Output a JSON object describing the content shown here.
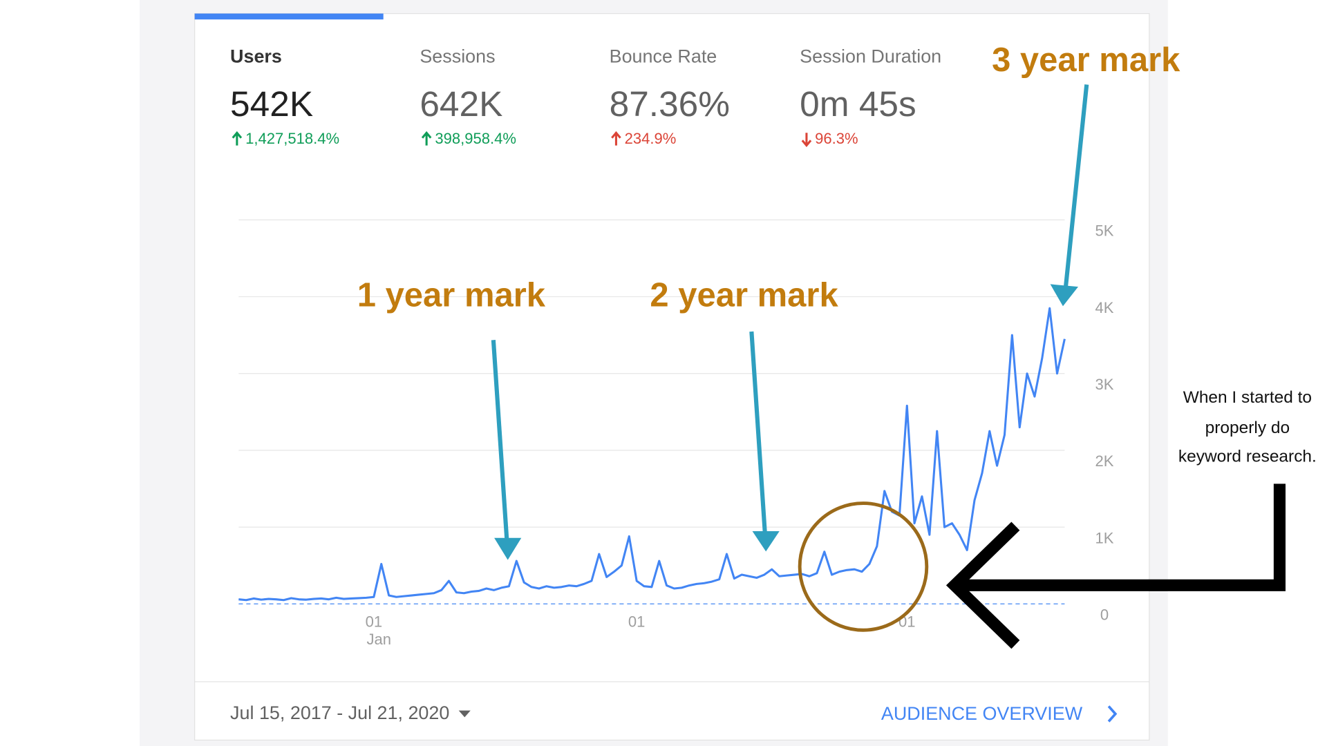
{
  "metrics": [
    {
      "label": "Users",
      "value": "542K",
      "change": "1,427,518.4%",
      "direction": "up",
      "color": "#0f9d58"
    },
    {
      "label": "Sessions",
      "value": "642K",
      "change": "398,958.4%",
      "direction": "up",
      "color": "#0f9d58"
    },
    {
      "label": "Bounce Rate",
      "value": "87.36%",
      "change": "234.9%",
      "direction": "up",
      "color": "#db4437"
    },
    {
      "label": "Session Duration",
      "value": "0m 45s",
      "change": "96.3%",
      "direction": "down",
      "color": "#db4437"
    }
  ],
  "chart_data": {
    "type": "line",
    "color": "#4285f4",
    "categories": [
      null,
      null,
      null,
      null,
      null,
      null,
      null,
      null,
      null,
      null,
      null,
      null,
      null,
      null,
      null,
      null,
      null,
      null,
      "01",
      null,
      null,
      null,
      null,
      null,
      null,
      null,
      null,
      null,
      null,
      null,
      null,
      null,
      null,
      null,
      null,
      null,
      null,
      null,
      null,
      null,
      null,
      null,
      null,
      null,
      null,
      null,
      null,
      null,
      null,
      null,
      null,
      null,
      null,
      "01",
      null,
      null,
      null,
      null,
      null,
      null,
      null,
      null,
      null,
      null,
      null,
      null,
      null,
      null,
      null,
      null,
      null,
      null,
      null,
      null,
      null,
      null,
      null,
      null,
      null,
      null,
      null,
      null,
      null,
      null,
      null,
      null,
      null,
      null,
      null,
      "01",
      null,
      null,
      null,
      null,
      null,
      null,
      null,
      null,
      null,
      null,
      null,
      null,
      null,
      null,
      null,
      null,
      null,
      null,
      null,
      null,
      null
    ],
    "first_tick_month": "Jan",
    "values": [
      60,
      50,
      70,
      55,
      65,
      60,
      50,
      75,
      60,
      55,
      65,
      70,
      60,
      80,
      65,
      70,
      75,
      80,
      90,
      520,
      110,
      90,
      100,
      110,
      120,
      130,
      140,
      180,
      300,
      150,
      140,
      160,
      170,
      200,
      180,
      210,
      230,
      560,
      280,
      220,
      200,
      230,
      210,
      220,
      240,
      230,
      260,
      300,
      650,
      350,
      420,
      500,
      880,
      300,
      230,
      220,
      560,
      240,
      200,
      210,
      240,
      260,
      270,
      290,
      320,
      650,
      330,
      380,
      360,
      340,
      380,
      450,
      360,
      370,
      380,
      390,
      360,
      400,
      680,
      380,
      420,
      440,
      450,
      420,
      520,
      750,
      1470,
      1200,
      1150,
      2580,
      1050,
      1400,
      900,
      2250,
      1000,
      1050,
      900,
      700,
      1350,
      1700,
      2250,
      1800,
      2200,
      3500,
      2300,
      3000,
      2700,
      3200,
      3850,
      3000,
      3450
    ],
    "ylim": [
      0,
      5000
    ],
    "yticks": [
      {
        "value": 0,
        "label": "0"
      },
      {
        "value": 1000,
        "label": "1K"
      },
      {
        "value": 2000,
        "label": "2K"
      },
      {
        "value": 3000,
        "label": "3K"
      },
      {
        "value": 4000,
        "label": "4K"
      },
      {
        "value": 5000,
        "label": "5K"
      }
    ],
    "grid": true
  },
  "annotations": {
    "year1": "1 year mark",
    "year2": "2 year mark",
    "year3": "3 year mark",
    "note": [
      "When I started to",
      "properly do",
      "keyword research."
    ]
  },
  "footer": {
    "date_range": "Jul 15, 2017 - Jul 21, 2020",
    "link": "AUDIENCE OVERVIEW"
  }
}
